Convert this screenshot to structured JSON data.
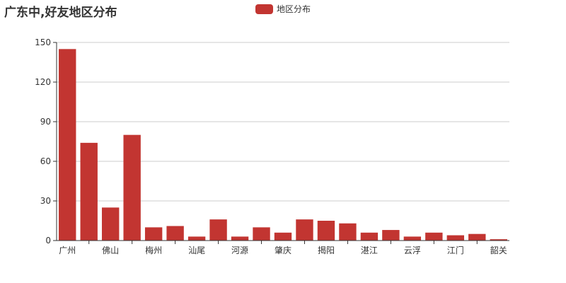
{
  "chart_data": {
    "type": "bar",
    "title": "广东中,好友地区分布",
    "legend": [
      "地区分布"
    ],
    "legend_position": "top-center",
    "categories": [
      "广州",
      "",
      "佛山",
      "",
      "梅州",
      "",
      "汕尾",
      "",
      "河源",
      "",
      "肇庆",
      "",
      "揭阳",
      "",
      "湛江",
      "",
      "云浮",
      "",
      "江门",
      "",
      "韶关"
    ],
    "series": [
      {
        "name": "地区分布",
        "values": [
          145,
          74,
          25,
          80,
          10,
          11,
          3,
          16,
          3,
          10,
          6,
          16,
          15,
          13,
          6,
          8,
          3,
          6,
          4,
          5,
          1
        ]
      }
    ],
    "ylim": [
      0,
      150
    ],
    "yticks": [
      0,
      30,
      60,
      90,
      120,
      150
    ],
    "grid": true,
    "color": "#c23531"
  }
}
